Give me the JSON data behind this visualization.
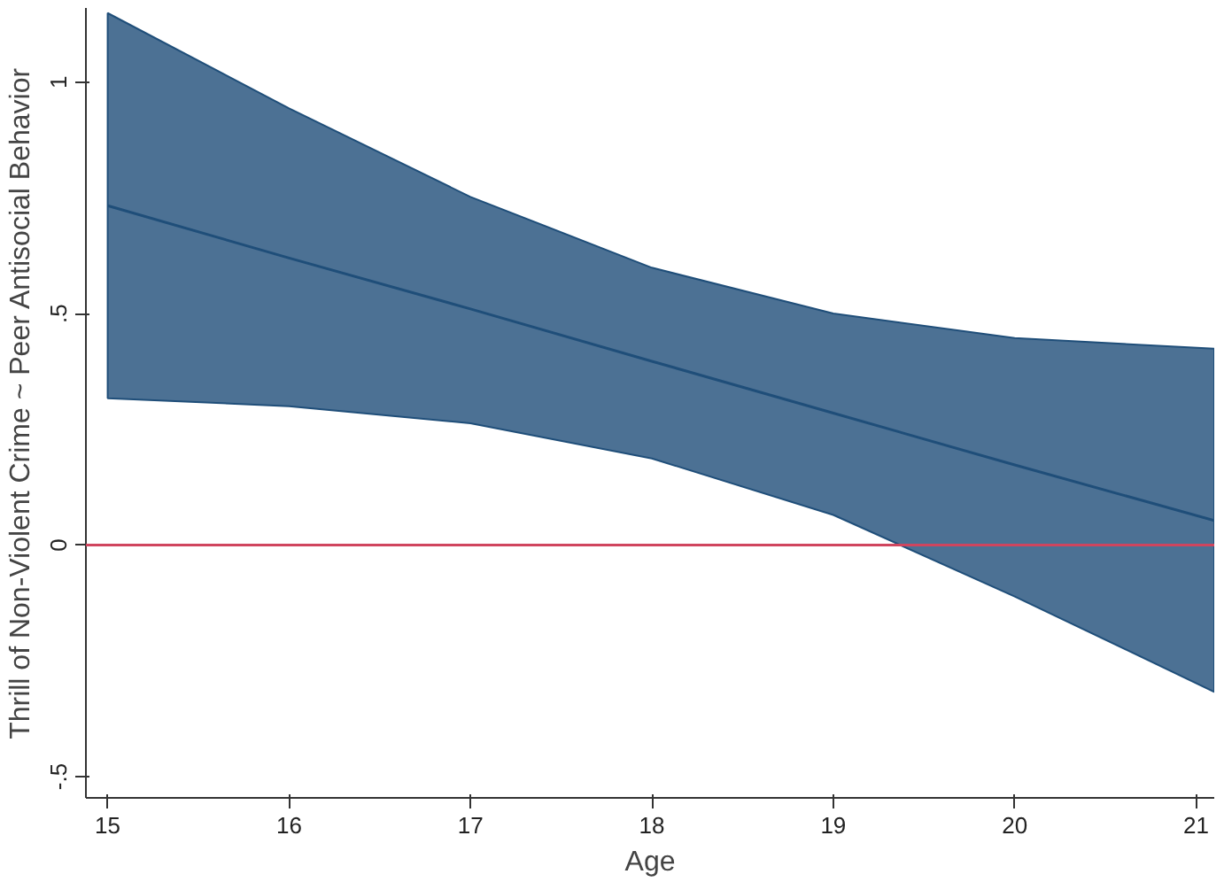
{
  "chart_data": {
    "type": "line",
    "xlabel": "Age",
    "ylabel": "Thrill of Non-Violent Crime ~ Peer Antisocial Behavior",
    "x": [
      15,
      16,
      17,
      18,
      19,
      20,
      21.1
    ],
    "series": [
      {
        "color": "#1f4e79",
        "values": [
          0.733,
          0.62,
          0.51,
          0.397,
          0.285,
          0.173,
          0.053
        ],
        "lower": [
          0.317,
          0.3,
          0.263,
          0.187,
          0.065,
          -0.111,
          -0.317
        ],
        "upper": [
          1.149,
          0.943,
          0.752,
          0.599,
          0.5,
          0.447,
          0.424
        ]
      }
    ],
    "xlim": [
      14.88,
      21.1
    ],
    "ylim": [
      -0.546,
      1.16
    ],
    "xticks": [
      15,
      16,
      17,
      18,
      19,
      20,
      21
    ],
    "yticks": [
      {
        "value": -0.5,
        "label": "-.5"
      },
      0,
      {
        "value": 0.5,
        "label": ".5"
      },
      1
    ],
    "ref_lines": [
      {
        "axis": "y",
        "value": 0,
        "color": "#d0455e"
      }
    ],
    "grid": false,
    "marker": "none",
    "line_style": "solid"
  }
}
